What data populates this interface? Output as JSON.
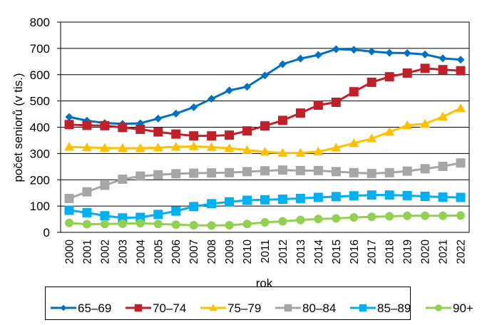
{
  "chart_data": {
    "type": "line",
    "title": "",
    "xlabel": "rok",
    "ylabel": "počet seniorů (v tis.)",
    "ylim": [
      0,
      800
    ],
    "yticks": [
      0,
      100,
      200,
      300,
      400,
      500,
      600,
      700,
      800
    ],
    "grid": true,
    "legend_position": "bottom",
    "x": [
      "2000",
      "2001",
      "2002",
      "2003",
      "2004",
      "2005",
      "2006",
      "2007",
      "2008",
      "2009",
      "2010",
      "2011",
      "2012",
      "2013",
      "2014",
      "2015",
      "2016",
      "2017",
      "2018",
      "2019",
      "2020",
      "2021",
      "2022"
    ],
    "series": [
      {
        "name": "65–69",
        "color": "#0070C0",
        "marker": "diamond",
        "values": [
          439,
          425,
          416,
          413,
          415,
          433,
          452,
          476,
          508,
          540,
          554,
          597,
          640,
          661,
          675,
          697,
          695,
          688,
          683,
          682,
          677,
          662,
          657
        ]
      },
      {
        "name": "70–74",
        "color": "#C0202A",
        "marker": "square",
        "values": [
          410,
          407,
          406,
          399,
          392,
          382,
          374,
          367,
          367,
          370,
          386,
          405,
          426,
          454,
          484,
          495,
          535,
          571,
          592,
          606,
          624,
          619,
          615
        ]
      },
      {
        "name": "75–79",
        "color": "#FFC000",
        "marker": "triangle",
        "values": [
          325,
          323,
          321,
          320,
          320,
          322,
          325,
          327,
          324,
          320,
          313,
          306,
          302,
          302,
          307,
          322,
          339,
          357,
          382,
          407,
          413,
          440,
          472
        ]
      },
      {
        "name": "80–84",
        "color": "#A6A6A6",
        "marker": "square",
        "values": [
          129,
          154,
          179,
          202,
          214,
          219,
          223,
          225,
          226,
          227,
          231,
          234,
          237,
          235,
          235,
          231,
          227,
          224,
          227,
          233,
          242,
          251,
          264
        ]
      },
      {
        "name": "85–89",
        "color": "#00B0F0",
        "marker": "square",
        "values": [
          84,
          75,
          63,
          55,
          57,
          68,
          81,
          98,
          109,
          116,
          122,
          124,
          126,
          129,
          133,
          136,
          139,
          142,
          142,
          140,
          137,
          134,
          133
        ]
      },
      {
        "name": "90+",
        "color": "#92D050",
        "marker": "circle",
        "values": [
          36,
          31,
          32,
          33,
          35,
          32,
          29,
          27,
          26,
          27,
          32,
          38,
          42,
          47,
          51,
          53,
          57,
          59,
          61,
          63,
          63,
          63,
          64
        ]
      }
    ]
  }
}
